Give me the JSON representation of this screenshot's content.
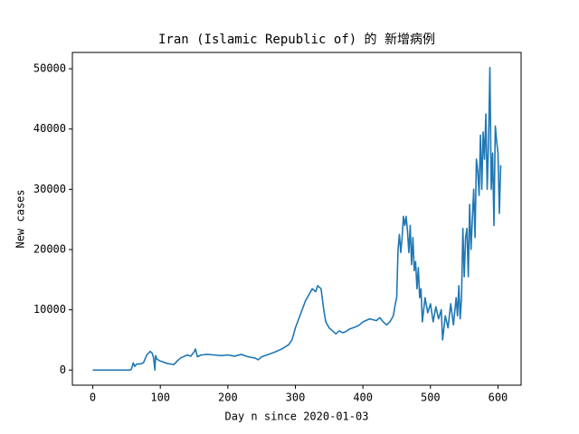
{
  "chart_data": {
    "type": "line",
    "title": "Iran (Islamic Republic of) 的 新增病例",
    "xlabel": "Day n since 2020-01-03",
    "ylabel": "New cases",
    "x": [
      0,
      55,
      57,
      60,
      62,
      65,
      70,
      75,
      80,
      85,
      88,
      90,
      92,
      93,
      95,
      100,
      110,
      120,
      125,
      130,
      140,
      145,
      150,
      152,
      155,
      160,
      170,
      180,
      190,
      200,
      210,
      220,
      230,
      240,
      245,
      250,
      260,
      270,
      280,
      290,
      295,
      300,
      305,
      310,
      315,
      320,
      325,
      330,
      333,
      338,
      342,
      345,
      350,
      355,
      360,
      365,
      370,
      375,
      380,
      385,
      390,
      395,
      400,
      410,
      420,
      425,
      430,
      435,
      440,
      445,
      448,
      450,
      452,
      454,
      456,
      458,
      460,
      462,
      464,
      466,
      468,
      470,
      472,
      474,
      476,
      478,
      480,
      482,
      484,
      486,
      488,
      492,
      496,
      500,
      504,
      508,
      512,
      516,
      518,
      522,
      526,
      530,
      534,
      538,
      540,
      542,
      544,
      546,
      548,
      550,
      552,
      554,
      556,
      558,
      560,
      562,
      564,
      566,
      568,
      570,
      572,
      574,
      576,
      578,
      580,
      582,
      584,
      586,
      588,
      590,
      592,
      594,
      596,
      598,
      600,
      602,
      604
    ],
    "series": [
      {
        "name": "New cases",
        "color": "#1f77b4",
        "values": [
          0,
          0,
          100,
          1200,
          600,
          1000,
          1000,
          1200,
          2500,
          3100,
          2800,
          2000,
          0,
          2400,
          1800,
          1500,
          1100,
          900,
          1500,
          2000,
          2500,
          2300,
          3000,
          3500,
          2200,
          2500,
          2600,
          2500,
          2400,
          2500,
          2300,
          2600,
          2200,
          2000,
          1700,
          2200,
          2600,
          3000,
          3500,
          4200,
          5000,
          7000,
          8500,
          10000,
          11500,
          12500,
          13500,
          13000,
          14000,
          13500,
          10000,
          8000,
          7000,
          6500,
          6000,
          6500,
          6200,
          6400,
          6800,
          7000,
          7200,
          7500,
          8000,
          8500,
          8200,
          8700,
          8000,
          7500,
          8000,
          9000,
          11000,
          12000,
          20000,
          22500,
          19500,
          22000,
          25500,
          24000,
          25500,
          23000,
          19500,
          24000,
          17500,
          22000,
          16500,
          18000,
          13500,
          17000,
          12000,
          13500,
          8000,
          12000,
          9500,
          11000,
          8000,
          10500,
          8500,
          10000,
          5000,
          9000,
          7000,
          11000,
          7500,
          12000,
          9000,
          14000,
          8500,
          12000,
          23500,
          15500,
          22000,
          23500,
          15500,
          27500,
          20000,
          25000,
          30000,
          22000,
          35000,
          33000,
          29000,
          39000,
          30000,
          39500,
          35000,
          42500,
          30000,
          38000,
          50200,
          30000,
          36000,
          24000,
          40500,
          38000,
          36000,
          26000,
          34000
        ]
      }
    ],
    "xlim": [
      -30.2,
      634.2
    ],
    "ylim": [
      -2510,
      52710
    ],
    "xticks": [
      0,
      100,
      200,
      300,
      400,
      500,
      600
    ],
    "yticks": [
      0,
      10000,
      20000,
      30000,
      40000,
      50000
    ]
  }
}
